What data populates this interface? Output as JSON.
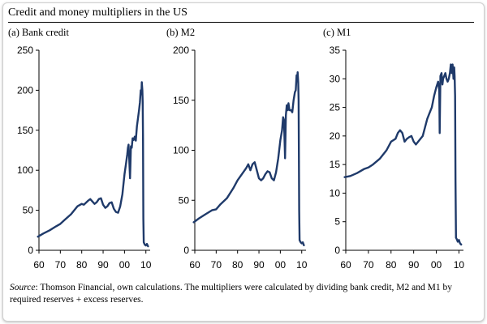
{
  "figure": {
    "title": "Credit and money multipliers in the US",
    "source_label": "Source",
    "source_text": ": Thomson Financial, own calculations. The multipliers were calculated by dividing bank credit, M2 and M1 by required reserves + excess reserves."
  },
  "colors": {
    "series": "#1f3a6a"
  },
  "chart_data": [
    {
      "type": "line",
      "title": "(a) Bank credit",
      "xlabel": "",
      "ylabel": "",
      "xlim": [
        1960,
        2012
      ],
      "ylim": [
        0,
        250
      ],
      "xticks": [
        1960,
        1970,
        1980,
        1990,
        2000,
        2010
      ],
      "xtick_labels": [
        "60",
        "70",
        "80",
        "90",
        "00",
        "10"
      ],
      "yticks": [
        0,
        50,
        100,
        150,
        200,
        250
      ],
      "ytick_labels": [
        "0",
        "50",
        "100",
        "150",
        "200",
        "250"
      ],
      "series": [
        {
          "name": "Bank credit multiplier",
          "x": [
            1959.5,
            1962,
            1965,
            1968,
            1970,
            1972,
            1975,
            1978,
            1980,
            1981,
            1983,
            1984,
            1986,
            1987,
            1988,
            1989,
            1990,
            1991,
            1992,
            1993,
            1994,
            1995,
            1996,
            1997,
            1998,
            1999,
            2000,
            2000.8,
            2001.3,
            2001.6,
            2001.9,
            2002.2,
            2002.6,
            2003,
            2003.4,
            2003.8,
            2004.3,
            2004.8,
            2005.3,
            2005.8,
            2006.3,
            2006.8,
            2007.2,
            2007.6,
            2007.9,
            2008.1,
            2008.35,
            2008.5,
            2008.65,
            2008.8,
            2009,
            2009.5,
            2010,
            2010.5,
            2011
          ],
          "y": [
            17,
            21,
            25,
            30,
            33,
            38,
            45,
            55,
            58,
            57,
            62,
            64,
            58,
            60,
            64,
            65,
            57,
            53,
            55,
            59,
            60,
            52,
            48,
            47,
            55,
            70,
            95,
            110,
            120,
            128,
            132,
            115,
            90,
            130,
            128,
            140,
            138,
            142,
            137,
            155,
            165,
            175,
            185,
            200,
            195,
            210,
            200,
            185,
            140,
            40,
            10,
            7,
            6,
            8,
            5
          ]
        }
      ]
    },
    {
      "type": "line",
      "title": "(b) M2",
      "xlabel": "",
      "ylabel": "",
      "xlim": [
        1960,
        2012
      ],
      "ylim": [
        0,
        200
      ],
      "xticks": [
        1960,
        1970,
        1980,
        1990,
        2000,
        2010
      ],
      "xtick_labels": [
        "60",
        "70",
        "80",
        "90",
        "00",
        "10"
      ],
      "yticks": [
        0,
        50,
        100,
        150,
        200
      ],
      "ytick_labels": [
        "0",
        "50",
        "100",
        "150",
        "200"
      ],
      "series": [
        {
          "name": "M2 multiplier",
          "x": [
            1959.5,
            1962,
            1965,
            1968,
            1970,
            1972,
            1975,
            1978,
            1980,
            1982,
            1984,
            1985,
            1986,
            1987,
            1988,
            1989,
            1990,
            1991,
            1992,
            1993,
            1994,
            1995,
            1996,
            1997,
            1998,
            1999,
            2000,
            2000.8,
            2001.3,
            2001.7,
            2002.2,
            2002.6,
            2003,
            2003.4,
            2003.8,
            2004.3,
            2005,
            2005.6,
            2006.2,
            2006.8,
            2007.2,
            2007.6,
            2007.9,
            2008.1,
            2008.35,
            2008.55,
            2008.8,
            2009,
            2009.5,
            2010,
            2010.5,
            2011
          ],
          "y": [
            28,
            32,
            36,
            40,
            41,
            46,
            52,
            62,
            70,
            76,
            82,
            86,
            80,
            86,
            88,
            80,
            72,
            70,
            72,
            76,
            79,
            78,
            72,
            70,
            78,
            92,
            110,
            120,
            133,
            130,
            92,
            135,
            145,
            140,
            147,
            140,
            140,
            138,
            150,
            158,
            160,
            175,
            170,
            178,
            168,
            150,
            40,
            10,
            8,
            7,
            8,
            5
          ]
        }
      ]
    },
    {
      "type": "line",
      "title": "(c) M1",
      "xlabel": "",
      "ylabel": "",
      "xlim": [
        1960,
        2012
      ],
      "ylim": [
        0,
        35
      ],
      "xticks": [
        1960,
        1970,
        1980,
        1990,
        2000,
        2010
      ],
      "xtick_labels": [
        "60",
        "70",
        "80",
        "90",
        "00",
        "10"
      ],
      "yticks": [
        0,
        5,
        10,
        15,
        20,
        25,
        30,
        35
      ],
      "ytick_labels": [
        "0",
        "5",
        "10",
        "15",
        "20",
        "25",
        "30",
        "35"
      ],
      "series": [
        {
          "name": "M1 multiplier",
          "x": [
            1959.5,
            1962,
            1965,
            1968,
            1970,
            1972,
            1975,
            1978,
            1980,
            1982,
            1983,
            1984,
            1985,
            1986,
            1987,
            1988,
            1989,
            1990,
            1991,
            1992,
            1993,
            1994,
            1995,
            1996,
            1997,
            1998,
            1999,
            2000,
            2000.8,
            2001.3,
            2001.5,
            2001.8,
            2002.3,
            2002.7,
            2003,
            2003.5,
            2004,
            2004.5,
            2005,
            2005.5,
            2006,
            2006.4,
            2006.8,
            2007.2,
            2007.6,
            2007.9,
            2008.1,
            2008.3,
            2008.5,
            2008.7,
            2009,
            2009.5,
            2010,
            2010.5,
            2011
          ],
          "y": [
            12.8,
            13,
            13.5,
            14.2,
            14.5,
            15,
            16,
            17.5,
            19,
            19.5,
            20.5,
            21,
            20.5,
            19,
            19.5,
            19.8,
            20,
            19,
            18.5,
            19,
            19.5,
            20,
            21.5,
            23,
            24,
            25,
            27,
            28.5,
            29.5,
            28,
            20.5,
            30.5,
            31,
            29,
            30,
            30.5,
            31,
            30,
            29.5,
            30,
            31,
            32.5,
            31,
            32.5,
            30,
            32,
            30.5,
            27,
            12,
            2.2,
            2,
            1.5,
            1.8,
            1.2,
            1
          ]
        }
      ]
    }
  ]
}
